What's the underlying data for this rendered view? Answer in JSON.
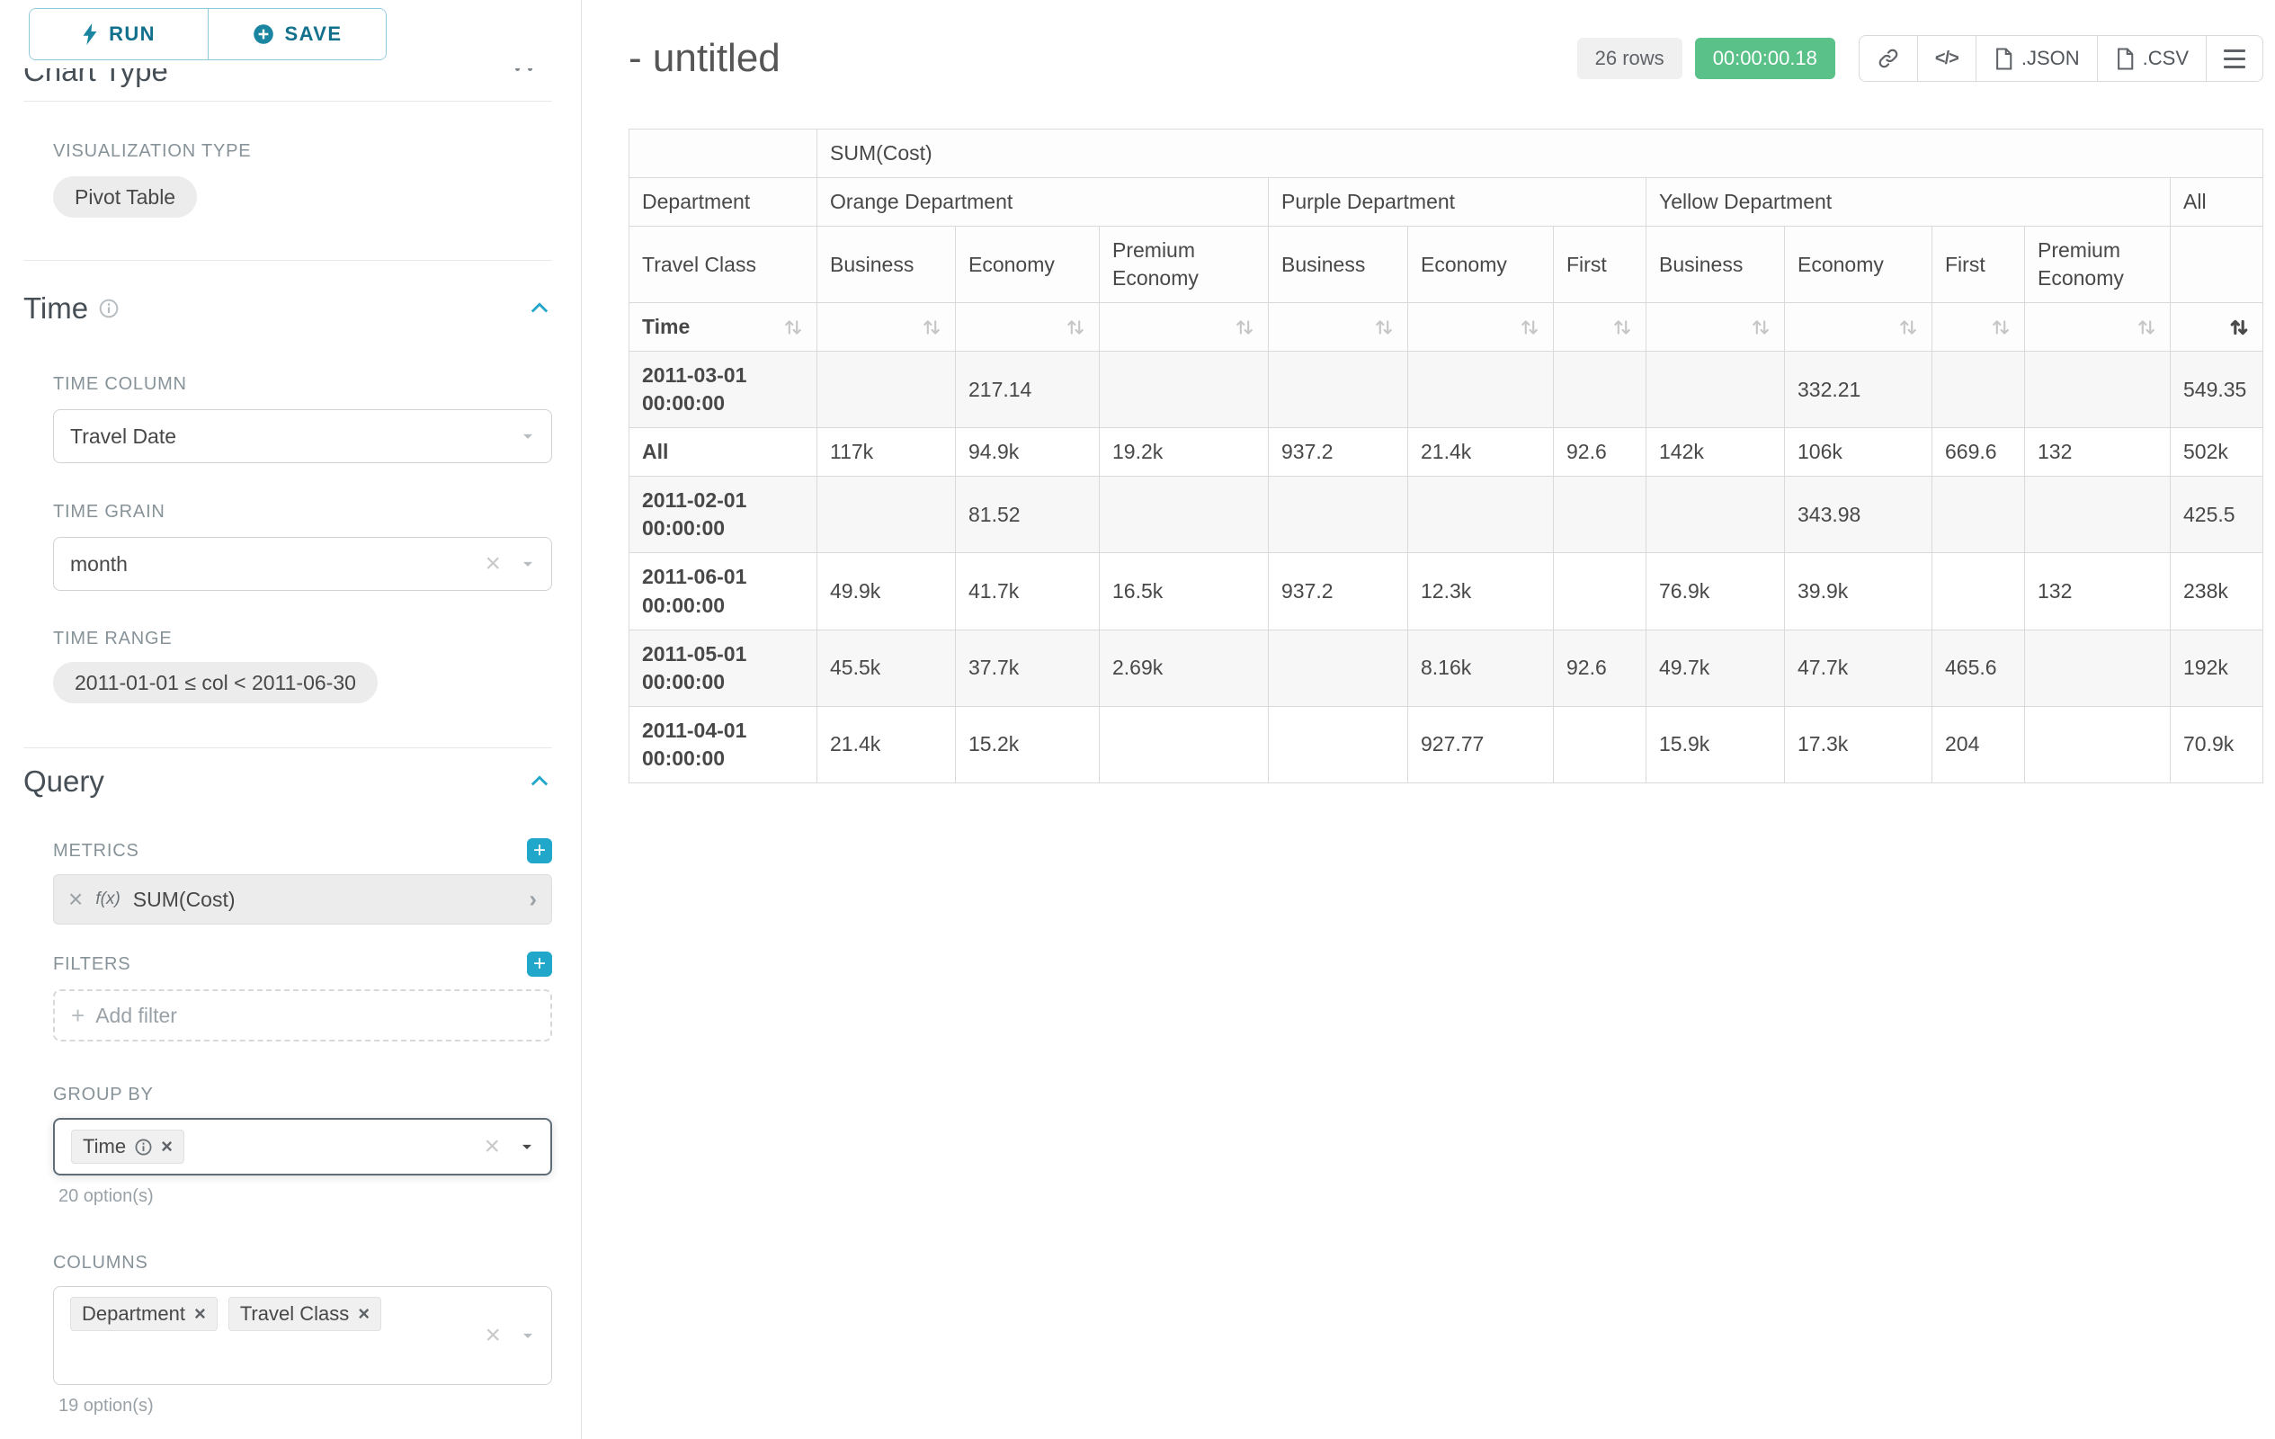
{
  "colors": {
    "primary": "#20a7c9",
    "success": "#5ac189"
  },
  "sidebar": {
    "run_label": "RUN",
    "save_label": "SAVE",
    "chart_type_header": "Chart Type",
    "visualization_type_label": "VISUALIZATION TYPE",
    "visualization_type_value": "Pivot Table",
    "time_section": {
      "title": "Time",
      "time_column_label": "TIME COLUMN",
      "time_column_value": "Travel Date",
      "time_grain_label": "TIME GRAIN",
      "time_grain_value": "month",
      "time_range_label": "TIME RANGE",
      "time_range_value": "2011-01-01 ≤ col < 2011-06-30"
    },
    "query_section": {
      "title": "Query",
      "metrics_label": "METRICS",
      "metric_prefix": "f(x)",
      "metric_value": "SUM(Cost)",
      "filters_label": "FILTERS",
      "add_filter_placeholder": "Add filter",
      "group_by_label": "GROUP BY",
      "group_by_tags": [
        "Time"
      ],
      "group_by_options_hint": "20 option(s)",
      "columns_label": "COLUMNS",
      "columns_tags": [
        "Department",
        "Travel Class"
      ],
      "columns_options_hint": "19 option(s)"
    }
  },
  "main": {
    "title": "- untitled",
    "row_count": "26 rows",
    "timer": "00:00:00.18",
    "json_button_label": ".JSON",
    "csv_button_label": ".CSV",
    "pivot_table": {
      "metric_header": "SUM(Cost)",
      "row_dim_label": "Department",
      "row_dim2_label": "Travel Class",
      "time_label": "Time",
      "sorted_descending_column": "All",
      "column_groups": [
        {
          "label": "Orange Department",
          "children": [
            "Business",
            "Economy",
            "Premium Economy"
          ]
        },
        {
          "label": "Purple Department",
          "children": [
            "Business",
            "Economy",
            "First"
          ]
        },
        {
          "label": "Yellow Department",
          "children": [
            "Business",
            "Economy",
            "First",
            "Premium Economy"
          ]
        },
        {
          "label": "All",
          "children": [
            ""
          ]
        }
      ],
      "rows": [
        {
          "label": "2011-03-01 00:00:00",
          "values": [
            "",
            "217.14",
            "",
            "",
            "",
            "",
            "",
            "332.21",
            "",
            "",
            "549.35"
          ]
        },
        {
          "label": "All",
          "values": [
            "117k",
            "94.9k",
            "19.2k",
            "937.2",
            "21.4k",
            "92.6",
            "142k",
            "106k",
            "669.6",
            "132",
            "502k"
          ]
        },
        {
          "label": "2011-02-01 00:00:00",
          "values": [
            "",
            "81.52",
            "",
            "",
            "",
            "",
            "",
            "343.98",
            "",
            "",
            "425.5"
          ]
        },
        {
          "label": "2011-06-01 00:00:00",
          "values": [
            "49.9k",
            "41.7k",
            "16.5k",
            "937.2",
            "12.3k",
            "",
            "76.9k",
            "39.9k",
            "",
            "132",
            "238k"
          ]
        },
        {
          "label": "2011-05-01 00:00:00",
          "values": [
            "45.5k",
            "37.7k",
            "2.69k",
            "",
            "8.16k",
            "92.6",
            "49.7k",
            "47.7k",
            "465.6",
            "",
            "192k"
          ]
        },
        {
          "label": "2011-04-01 00:00:00",
          "values": [
            "21.4k",
            "15.2k",
            "",
            "",
            "927.77",
            "",
            "15.9k",
            "17.3k",
            "204",
            "",
            "70.9k"
          ]
        }
      ]
    }
  }
}
